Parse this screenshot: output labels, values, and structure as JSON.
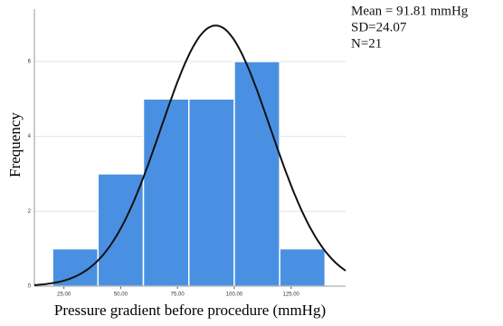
{
  "chart_data": {
    "type": "histogram",
    "xlabel": "Pressure gradient before procedure (mmHg)",
    "ylabel": "Frequency",
    "bins": [
      20,
      40,
      60,
      80,
      100,
      120,
      140
    ],
    "values": [
      1,
      3,
      5,
      5,
      6,
      1
    ],
    "color": "#4a90e2",
    "xlim": [
      12,
      149
    ],
    "ylim": [
      0,
      7.4
    ],
    "xticks": [
      {
        "value": 25,
        "label": "25.00"
      },
      {
        "value": 50,
        "label": "50.00"
      },
      {
        "value": 75,
        "label": "75.00"
      },
      {
        "value": 100,
        "label": "100.00"
      },
      {
        "value": 125,
        "label": "125.00"
      }
    ],
    "yticks": [
      0,
      2,
      4,
      6
    ],
    "grid": true,
    "normal_curve": {
      "mean": {
        "value": 91.81,
        "label": "Mean = 91.81 mmHg"
      },
      "sd": {
        "value": 24.07,
        "label": "SD=24.07"
      },
      "n": {
        "value": 21,
        "label": "N=21"
      }
    }
  }
}
